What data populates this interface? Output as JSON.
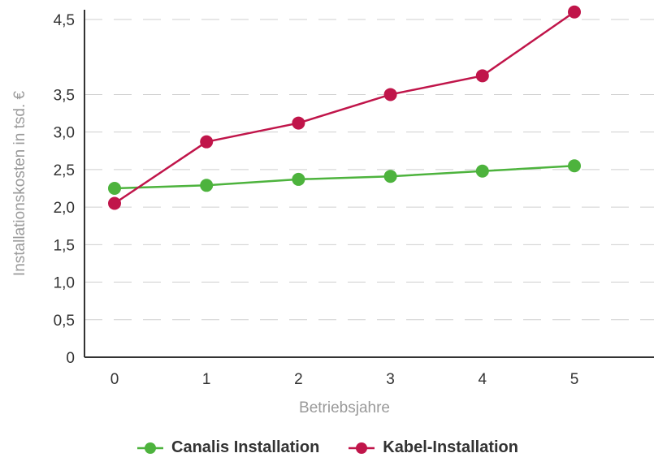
{
  "chart_data": {
    "type": "line",
    "x": [
      0,
      1,
      2,
      3,
      4,
      5
    ],
    "xlabel": "Betriebsjahre",
    "ylabel": "Installationskosten in tsd. €",
    "ylim": [
      0,
      4.5
    ],
    "y_ticks": [
      "0",
      "0,5",
      "1,0",
      "1,5",
      "2,0",
      "2,5",
      "3,0",
      "3,5",
      "4,5"
    ],
    "x_ticks": [
      "0",
      "1",
      "2",
      "3",
      "4",
      "5"
    ],
    "grid": "horizontal-dashed",
    "legend_position": "bottom",
    "series": [
      {
        "name": "Canalis Installation",
        "color": "#4db33d",
        "values": [
          2.25,
          2.29,
          2.37,
          2.41,
          2.48,
          2.55
        ]
      },
      {
        "name": "Kabel-Installation",
        "color": "#c0154a",
        "values": [
          2.05,
          2.87,
          3.12,
          3.5,
          3.75,
          4.6
        ]
      }
    ]
  }
}
